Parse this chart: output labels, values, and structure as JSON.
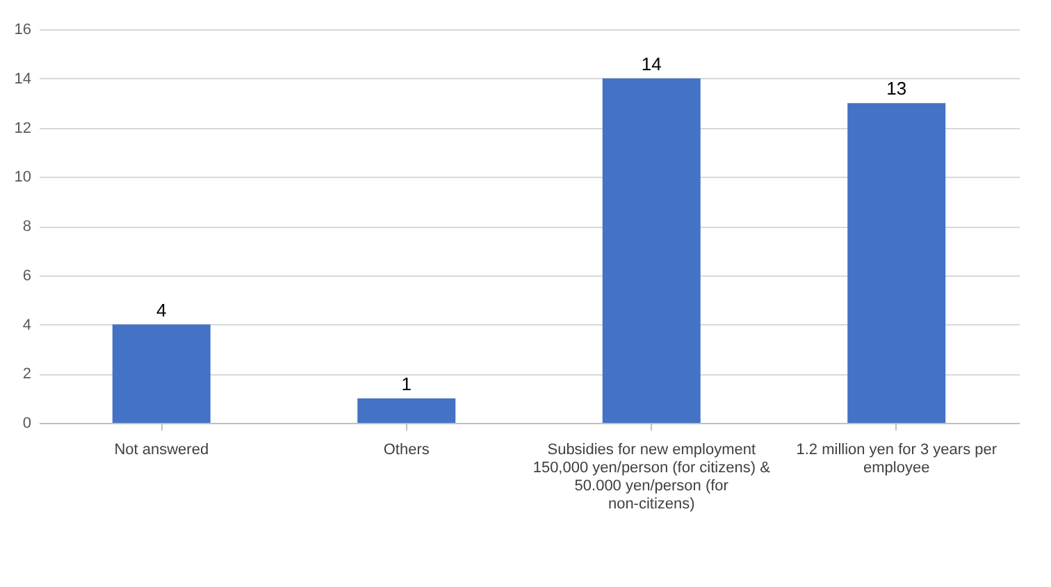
{
  "chart_data": {
    "type": "bar",
    "categories": [
      "Not answered",
      "Others",
      "Subsidies for new employment 150,000 yen/person (for citizens) & 50.000 yen/person (for non-citizens)",
      "1.2 million yen for 3 years per employee"
    ],
    "values": [
      4,
      1,
      14,
      13
    ],
    "color": "#4472c4",
    "ylim": [
      0,
      16
    ],
    "yticks": [
      0,
      2,
      4,
      6,
      8,
      10,
      12,
      14,
      16
    ],
    "grid": "y",
    "data_labels": true
  }
}
